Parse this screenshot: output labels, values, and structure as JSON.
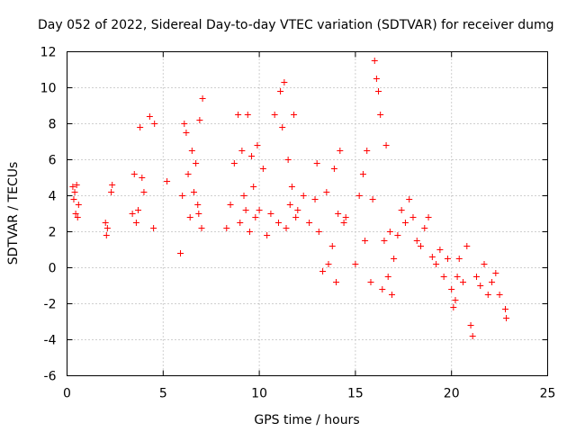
{
  "chart_data": {
    "type": "scatter",
    "title": "Day 052 of 2022, Sidereal Day-to-day VTEC variation (SDTVAR) for receiver dumg",
    "xlabel": "GPS time / hours",
    "ylabel": "SDTVAR / TECUs",
    "xlim": [
      0,
      25
    ],
    "ylim": [
      -6,
      12
    ],
    "xticks": [
      "0",
      "5",
      "10",
      "15",
      "20",
      "25"
    ],
    "yticks": [
      "-6",
      "-4",
      "-2",
      "0",
      "2",
      "4",
      "6",
      "8",
      "10",
      "12"
    ],
    "grid": true,
    "marker": "+",
    "color": "#ff0000",
    "series": [
      {
        "name": "SDTVAR",
        "x": [
          0.3,
          0.35,
          0.4,
          0.45,
          0.5,
          0.55,
          0.6,
          2.0,
          2.05,
          2.1,
          2.3,
          2.35,
          3.4,
          3.5,
          3.6,
          3.7,
          3.8,
          3.9,
          4.0,
          4.5,
          4.55,
          4.3,
          5.2,
          5.9,
          6.0,
          6.1,
          6.2,
          6.3,
          6.4,
          6.5,
          6.6,
          6.7,
          6.8,
          6.9,
          7.0,
          7.05,
          6.85,
          8.3,
          8.5,
          8.7,
          8.9,
          9.0,
          9.1,
          9.2,
          9.3,
          9.4,
          9.5,
          9.6,
          9.7,
          9.8,
          9.9,
          10.0,
          10.2,
          10.4,
          10.6,
          10.8,
          11.0,
          11.1,
          11.2,
          11.3,
          11.4,
          11.5,
          11.6,
          11.7,
          11.8,
          11.9,
          12.0,
          12.3,
          12.6,
          12.9,
          13.0,
          13.1,
          13.3,
          13.5,
          13.6,
          13.8,
          13.9,
          14.0,
          14.1,
          14.2,
          14.4,
          14.5,
          15.0,
          15.2,
          15.4,
          15.5,
          15.6,
          15.8,
          15.9,
          16.0,
          16.1,
          16.2,
          16.3,
          16.4,
          16.5,
          16.6,
          16.7,
          16.8,
          16.9,
          17.0,
          17.2,
          17.4,
          17.6,
          17.8,
          18.0,
          18.2,
          18.4,
          18.6,
          18.8,
          19.0,
          19.2,
          19.4,
          19.6,
          19.8,
          20.0,
          20.1,
          20.2,
          20.3,
          20.4,
          20.6,
          20.8,
          21.0,
          21.1,
          21.3,
          21.5,
          21.7,
          21.9,
          22.1,
          22.3,
          22.5,
          22.8,
          22.85
        ],
        "y": [
          4.5,
          3.8,
          4.2,
          3.0,
          4.6,
          2.8,
          3.5,
          2.5,
          1.8,
          2.2,
          4.2,
          4.6,
          3.0,
          5.2,
          2.5,
          3.2,
          7.8,
          5.0,
          4.2,
          2.2,
          8.0,
          8.4,
          4.8,
          0.8,
          4.0,
          8.0,
          7.5,
          5.2,
          2.8,
          6.5,
          4.2,
          5.8,
          3.5,
          8.2,
          2.2,
          9.4,
          3.0,
          2.2,
          3.5,
          5.8,
          8.5,
          2.5,
          6.5,
          4.0,
          3.2,
          8.5,
          2.0,
          6.2,
          4.5,
          2.8,
          6.8,
          3.2,
          5.5,
          1.8,
          3.0,
          8.5,
          2.5,
          9.8,
          7.8,
          10.3,
          2.2,
          6.0,
          3.5,
          4.5,
          8.5,
          2.8,
          3.2,
          4.0,
          2.5,
          3.8,
          5.8,
          2.0,
          -0.2,
          4.2,
          0.2,
          1.2,
          5.5,
          -0.8,
          3.0,
          6.5,
          2.5,
          2.8,
          0.2,
          4.0,
          5.2,
          1.5,
          6.5,
          -0.8,
          3.8,
          11.5,
          10.5,
          9.8,
          8.5,
          -1.2,
          1.5,
          6.8,
          -0.5,
          2.0,
          -1.5,
          0.5,
          1.8,
          3.2,
          2.5,
          3.8,
          2.8,
          1.5,
          1.2,
          2.2,
          2.8,
          0.6,
          0.2,
          1.0,
          -0.5,
          0.5,
          -1.2,
          -2.2,
          -1.8,
          -0.5,
          0.5,
          -0.8,
          1.2,
          -3.2,
          -3.8,
          -0.5,
          -1.0,
          0.2,
          -1.5,
          -0.8,
          -0.3,
          -1.5,
          -2.3,
          -2.8
        ]
      }
    ]
  }
}
